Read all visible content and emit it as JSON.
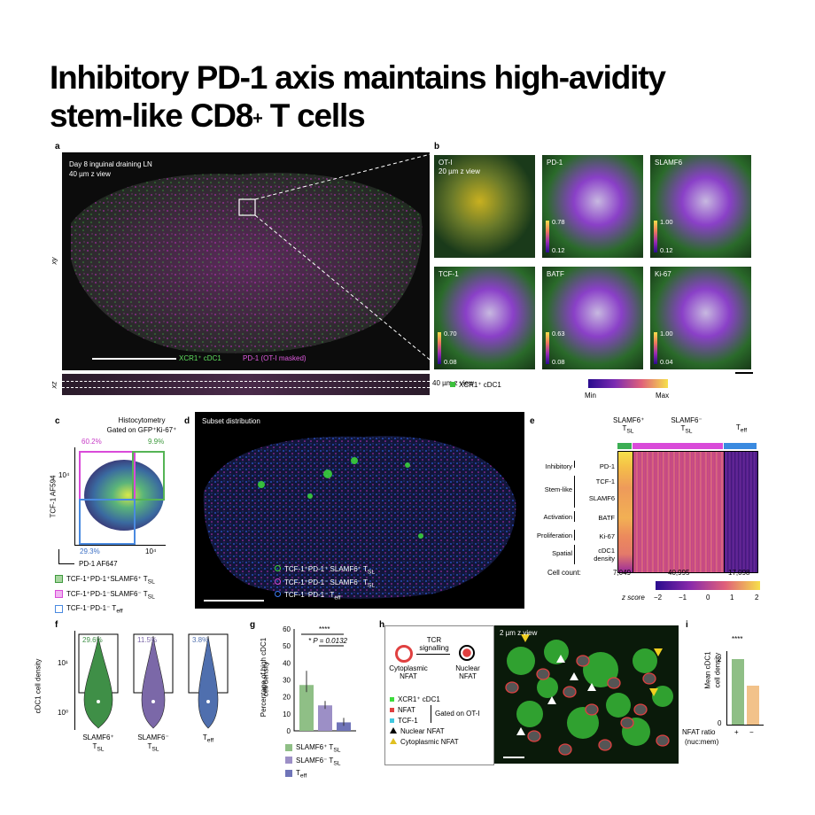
{
  "title": {
    "line1": "Inhibitory PD-1 axis maintains high-avidity",
    "line2_pre": "stem-like CD8",
    "line2_sup": "+",
    "line2_post": " T cells"
  },
  "panel_a": {
    "label": "a",
    "caption1": "Day 8 inguinal draining LN",
    "caption2": "40 µm z view",
    "legend_green": "XCR1⁺ cDC1",
    "legend_magenta": "PD-1 (OT-I masked)",
    "axis_xy": "xy",
    "axis_xz": "xz",
    "xz_caption": "40 µm z view"
  },
  "panel_b": {
    "label": "b",
    "tiles": [
      {
        "name": "OT-I",
        "sub": "20 µm z view",
        "max": "",
        "min": ""
      },
      {
        "name": "PD-1",
        "sub": "",
        "max": "0.78",
        "min": "0.12"
      },
      {
        "name": "SLAMF6",
        "sub": "",
        "max": "1.00",
        "min": "0.12"
      },
      {
        "name": "TCF-1",
        "sub": "",
        "max": "0.70",
        "min": "0.08"
      },
      {
        "name": "BATF",
        "sub": "",
        "max": "0.63",
        "min": "0.08"
      },
      {
        "name": "Ki-67",
        "sub": "",
        "max": "1.00",
        "min": "0.04"
      }
    ],
    "legend": "XCR1⁺ cDC1",
    "cbar_min": "Min",
    "cbar_max": "Max"
  },
  "panel_c": {
    "label": "c",
    "title1": "Histocytometry",
    "title2": "Gated on GFP⁺Ki-67⁺",
    "pct_magenta": "60.2%",
    "pct_green": "9.9%",
    "pct_blue": "29.3%",
    "tick_y": "10⁴",
    "tick_x": "10⁴",
    "ylabel": "TCF-1 AF594",
    "xlabel": "PD-1 AF647",
    "legend": [
      "TCF-1⁺PD-1⁺SLAMF6⁺ T",
      "TCF-1⁺PD-1⁻SLAMF6⁻ T",
      "TCF-1⁻PD-1⁻ T"
    ],
    "legend_sub": [
      "SL",
      "SL",
      "eff"
    ]
  },
  "panel_d": {
    "label": "d",
    "caption": "Subset distribution",
    "legend": [
      "TCF-1⁺PD-1⁺ SLAMF6⁺ T",
      "TCF-1⁺PD-1⁻ SLAMF6⁻ T",
      "TCF-1⁻PD-1⁻ T"
    ],
    "legend_sub": [
      "SL",
      "SL",
      "eff"
    ]
  },
  "panel_e": {
    "label": "e",
    "groups": [
      {
        "name": "SLAMF6⁺",
        "sub": "T",
        "sub2": "SL"
      },
      {
        "name": "SLAMF6⁻",
        "sub": "T",
        "sub2": "SL"
      },
      {
        "name": "",
        "sub": "T",
        "sub2": "eff"
      }
    ],
    "categories": [
      "Inhibitory",
      "Stem-like",
      "Activation",
      "Proliferation",
      "Spatial"
    ],
    "markers": [
      "PD-1",
      "TCF-1",
      "SLAMF6",
      "BATF",
      "Ki-67",
      "cDC1",
      "density"
    ],
    "count_label": "Cell count:",
    "counts": [
      "7,049",
      "40,995",
      "17,098"
    ],
    "zscore_label": "z score",
    "zticks": [
      "−2",
      "−1",
      "0",
      "1",
      "2"
    ]
  },
  "panel_f": {
    "label": "f",
    "ylabel": "cDC1 cell density",
    "tick_1": "10¹",
    "tick_0": "10⁰",
    "groups": [
      {
        "name": "SLAMF6⁺",
        "sub": "T",
        "sub2": "SL",
        "pct": "29.6%",
        "color": "#3f8f47"
      },
      {
        "name": "SLAMF6⁻",
        "sub": "T",
        "sub2": "SL",
        "pct": "11.5%",
        "color": "#7b68a8"
      },
      {
        "name": "T",
        "sub": "eff",
        "sub2": "",
        "pct": "3.8%",
        "color": "#4f6fae"
      }
    ]
  },
  "panel_g": {
    "label": "g",
    "ylabel1": "Percentage of high cDC1",
    "ylabel2": "cell density",
    "yticks": [
      "0",
      "10",
      "20",
      "30",
      "40",
      "50",
      "60"
    ],
    "sig1": "****",
    "sig2": "* P = 0.0132",
    "legend": [
      "SLAMF6⁺ T",
      "SLAMF6⁻ T",
      "T"
    ],
    "legend_sub": [
      "SL",
      "SL",
      "eff"
    ]
  },
  "chart_data": {
    "type": "bar",
    "categories": [
      "SLAMF6⁺ TSL",
      "SLAMF6⁻ TSL",
      "Teff"
    ],
    "values": [
      27,
      15,
      5
    ],
    "ylabel": "Percentage of high cDC1 cell density",
    "ylim": [
      0,
      60
    ],
    "colors": [
      "#8fbf86",
      "#9c8fc6",
      "#6f74b8"
    ]
  },
  "panel_h": {
    "label": "h",
    "tcr1": "TCR",
    "tcr2": "signalling",
    "cyto1": "Cytoplasmic",
    "cyto2": "NFAT",
    "nuc1": "Nuclear",
    "nuc2": "NFAT",
    "img_caption": "2 µm z view",
    "legend": [
      "XCR1⁺ cDC1",
      "NFAT",
      "TCF-1"
    ],
    "gated": "Gated on OT-I",
    "tri_nuclear": "Nuclear NFAT",
    "tri_cyto": "Cytoplasmic NFAT"
  },
  "panel_i": {
    "label": "i",
    "ylabel1": "Mean cDC1",
    "ylabel2": "cell density",
    "ytick2": "2",
    "ytick0": "0",
    "sig": "****",
    "xlabel1": "NFAT ratio",
    "xlabel2": "(nuc:mem)",
    "plus": "+",
    "minus": "−"
  }
}
